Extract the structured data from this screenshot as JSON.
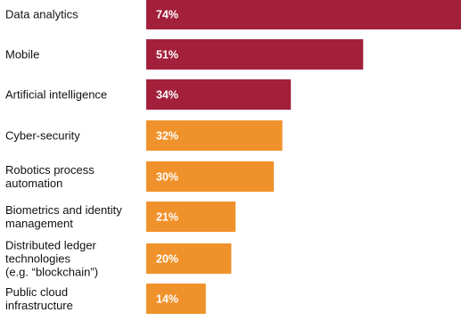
{
  "chart_data": {
    "type": "bar",
    "orientation": "horizontal",
    "categories": [
      "Data analytics",
      "Mobile",
      "Artificial intelligence",
      "Cyber-security",
      "Robotics process automation",
      "Biometrics and identity management",
      "Distributed ledger technologies (e.g. “blockchain”)",
      "Public cloud infrastructure"
    ],
    "category_lines": [
      [
        "Data analytics"
      ],
      [
        "Mobile"
      ],
      [
        "Artificial intelligence"
      ],
      [
        "Cyber-security"
      ],
      [
        "Robotics process",
        "automation"
      ],
      [
        "Biometrics and identity",
        "management"
      ],
      [
        "Distributed ledger",
        "technologies",
        "(e.g. “blockchain”)"
      ],
      [
        "Public cloud",
        "infrastructure"
      ]
    ],
    "values": [
      74,
      51,
      34,
      32,
      30,
      21,
      20,
      14
    ],
    "value_labels": [
      "74%",
      "51%",
      "34%",
      "32%",
      "30%",
      "21%",
      "20%",
      "14%"
    ],
    "bar_colors": [
      "#a3203a",
      "#a3203a",
      "#a3203a",
      "#f0922b",
      "#f0922b",
      "#f0922b",
      "#f0922b",
      "#f0922b"
    ],
    "xlim": [
      0,
      74
    ],
    "grid": false,
    "legend": "none"
  }
}
